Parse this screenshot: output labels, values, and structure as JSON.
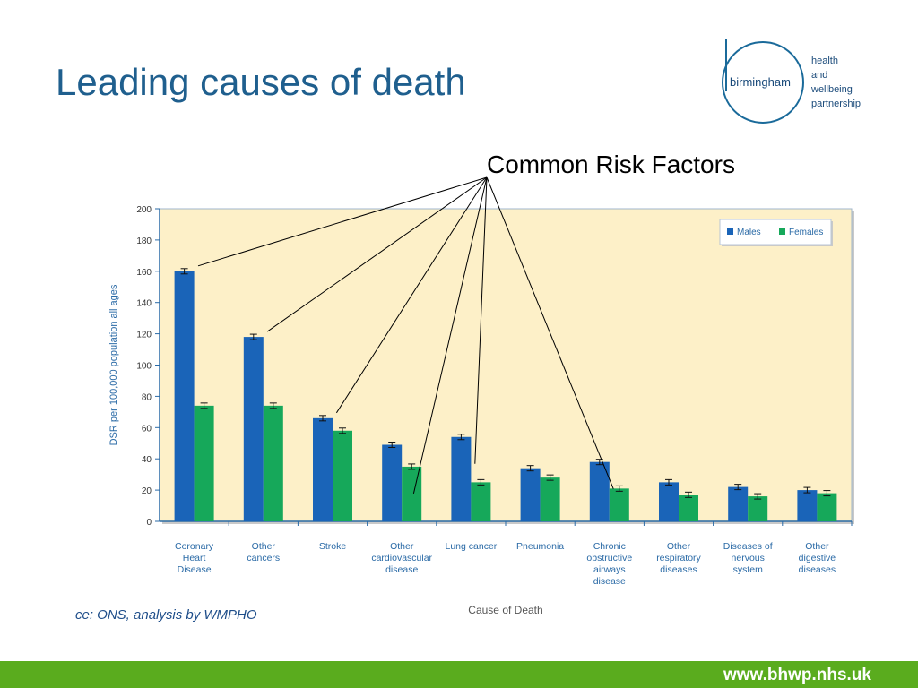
{
  "slide": {
    "title": "Leading causes of death",
    "annotation": "Common Risk Factors",
    "source": "ce: ONS, analysis by WMPHO",
    "footer_url": "www.bhwp.nhs.uk"
  },
  "logo": {
    "word": "birmingham",
    "tagline": [
      "health",
      "and",
      "wellbeing",
      "partnership"
    ]
  },
  "colors": {
    "title": "#1f5f8e",
    "males": "#1a64b8",
    "females": "#16a85a",
    "plot_bg": "#fdf0c8",
    "footer": "#5aac1e",
    "axis_text": "#2a6aa6"
  },
  "chart_data": {
    "type": "bar",
    "xlabel": "Cause of Death",
    "ylabel": "DSR per 100,000 population all ages",
    "ylim": [
      0,
      200
    ],
    "yticks": [
      0,
      20,
      40,
      60,
      80,
      100,
      120,
      140,
      160,
      180,
      200
    ],
    "grid": false,
    "legend": "top-right",
    "error_bars": true,
    "categories": [
      [
        "Coronary",
        "Heart",
        "Disease"
      ],
      [
        "Other",
        "cancers"
      ],
      [
        "Stroke"
      ],
      [
        "Other",
        "cardiovascular",
        "disease"
      ],
      [
        "Lung cancer"
      ],
      [
        "Pneumonia"
      ],
      [
        "Chronic",
        "obstructive",
        "airways",
        "disease"
      ],
      [
        "Other",
        "respiratory",
        "diseases"
      ],
      [
        "Diseases of",
        "nervous",
        "system"
      ],
      [
        "Other",
        "digestive",
        "diseases"
      ]
    ],
    "series": [
      {
        "name": "Males",
        "values": [
          160,
          118,
          66,
          49,
          54,
          34,
          38,
          25,
          22,
          20
        ]
      },
      {
        "name": "Females",
        "values": [
          74,
          74,
          58,
          35,
          25,
          28,
          21,
          17,
          16,
          18
        ]
      }
    ],
    "risk_factor_links": [
      {
        "category": 0,
        "series": 0
      },
      {
        "category": 1,
        "series": 0
      },
      {
        "category": 2,
        "series": 0
      },
      {
        "category": 3,
        "series": 1
      },
      {
        "category": 4,
        "series": 0
      },
      {
        "category": 6,
        "series": 0
      }
    ]
  }
}
